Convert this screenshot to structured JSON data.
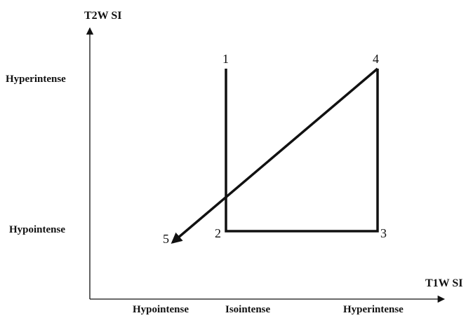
{
  "axes": {
    "y_title": "T2W SI",
    "x_title": "T1W SI",
    "y_levels": [
      "Hyperintense",
      "Hypointense"
    ],
    "x_levels": [
      "Hypointense",
      "Isointense",
      "Hyperintense"
    ]
  },
  "points": [
    {
      "id": "p1",
      "label": "1"
    },
    {
      "id": "p2",
      "label": "2"
    },
    {
      "id": "p3",
      "label": "3"
    },
    {
      "id": "p4",
      "label": "4"
    },
    {
      "id": "p5",
      "label": "5"
    }
  ],
  "colors": {
    "ink": "#111111",
    "background": "#ffffff"
  }
}
